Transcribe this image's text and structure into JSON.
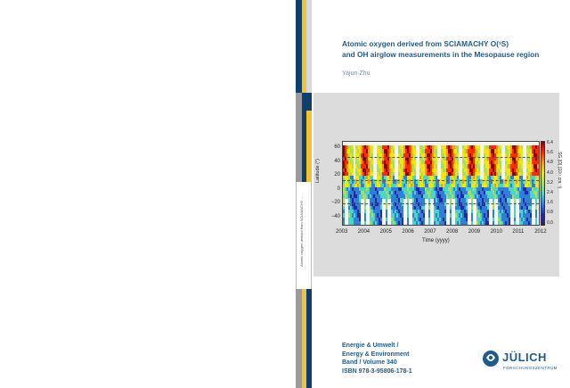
{
  "cover": {
    "title_line1": "Atomic oxygen derived from SCIAMACHY O(¹S)",
    "title_line2": "and OH airglow measurements in the Mesopause region",
    "author": "Yajun Zhu"
  },
  "spine": {
    "text": "Atomic oxygen derived from SCIAMACHY ..."
  },
  "chart": {
    "ylabel": "Latitude (°)",
    "xlabel": "Time (yyyy)",
    "colorbar_label": "SG [O] (10¹¹ cm⁻³)",
    "y_ticks": [
      "60",
      "40",
      "20",
      "0",
      "−20",
      "−40"
    ],
    "x_ticks": [
      "2003",
      "2004",
      "2005",
      "2006",
      "2007",
      "2008",
      "2009",
      "2010",
      "2011",
      "2012"
    ],
    "cbar_ticks": [
      "6.4",
      "5.6",
      "4.8",
      "4.0",
      "3.2",
      "2.4",
      "1.6",
      "0.8",
      "0.0"
    ]
  },
  "chart_data": {
    "type": "heatmap",
    "title": "",
    "xlabel": "Time (yyyy)",
    "ylabel": "Latitude (°)",
    "xlim": [
      2003,
      2012
    ],
    "ylim": [
      -50,
      70
    ],
    "clim": [
      0,
      6.4
    ],
    "colorbar_label": "SG [O] (10¹¹ cm⁻³)",
    "colormap": "jet"
  },
  "series": {
    "line1": "Energie & Umwelt /",
    "line2": "Energy & Environment",
    "line3": "Band / Volume 340",
    "line4": "ISBN 978-3-95806-178-1"
  },
  "logo": {
    "name": "JÜLICH",
    "subtitle": "Forschungszentrum"
  },
  "colors": {
    "brand_blue": "#1f5c8c",
    "stripe_yellow": "#f4c430",
    "stripe_navy": "#0e3f6e",
    "stripe_grey": "#9b9b9b"
  }
}
